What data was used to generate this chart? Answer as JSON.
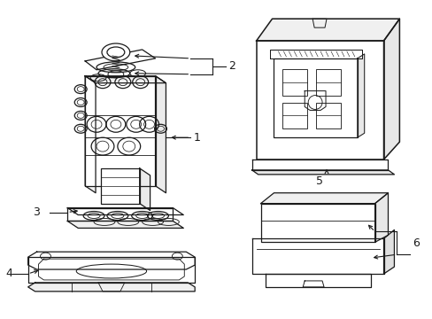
{
  "background_color": "#ffffff",
  "line_color": "#1a1a1a",
  "fig_width": 4.89,
  "fig_height": 3.6,
  "dpi": 100,
  "border_color": "#cccccc"
}
